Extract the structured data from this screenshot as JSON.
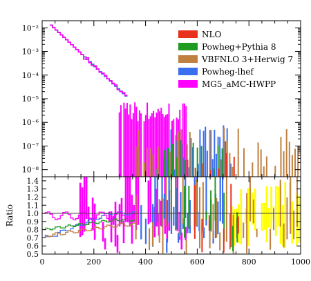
{
  "chart_data": {
    "type": "histogram",
    "upper_panel": {
      "y_scale": "log",
      "ylim": [
        5e-09,
        0.02
      ],
      "y_tick_labels": [
        "10⁻⁸",
        "10⁻⁷",
        "10⁻⁶",
        "10⁻⁵",
        "10⁻⁴",
        "10⁻³",
        "10⁻²"
      ],
      "legend": [
        "NLO",
        "Powheg+Pythia 8",
        "VBFNLO 3+Herwig 7",
        "Powheg-lhef",
        "MG5_aMC-HWPP"
      ],
      "legend_position": "top-right",
      "series": [
        {
          "name": "NLO",
          "color": "#e8321e"
        },
        {
          "name": "Powheg+Pythia 8",
          "color": "#1f9b1f"
        },
        {
          "name": "VBFNLO 3+Herwig 7",
          "color": "#bf8040"
        },
        {
          "name": "Powheg-lhef",
          "color": "#3b6ff0"
        },
        {
          "name": "MG5_aMC-HWPP",
          "color": "#ff00ff"
        }
      ]
    },
    "lower_panel": {
      "ylabel": "Ratio",
      "ylim": [
        0.5,
        1.45
      ],
      "y_tick_labels": [
        "0.5",
        "0.6",
        "0.7",
        "0.8",
        "0.9",
        "1.0",
        "1.1",
        "1.2",
        "1.3",
        "1.4"
      ],
      "reference_line": 1.0,
      "uncertainty_band_color": "#ffff00"
    },
    "x_axis": {
      "xlim": [
        0,
        1000
      ],
      "tick_labels": [
        "0",
        "200",
        "400",
        "600",
        "800",
        "1000"
      ]
    }
  }
}
